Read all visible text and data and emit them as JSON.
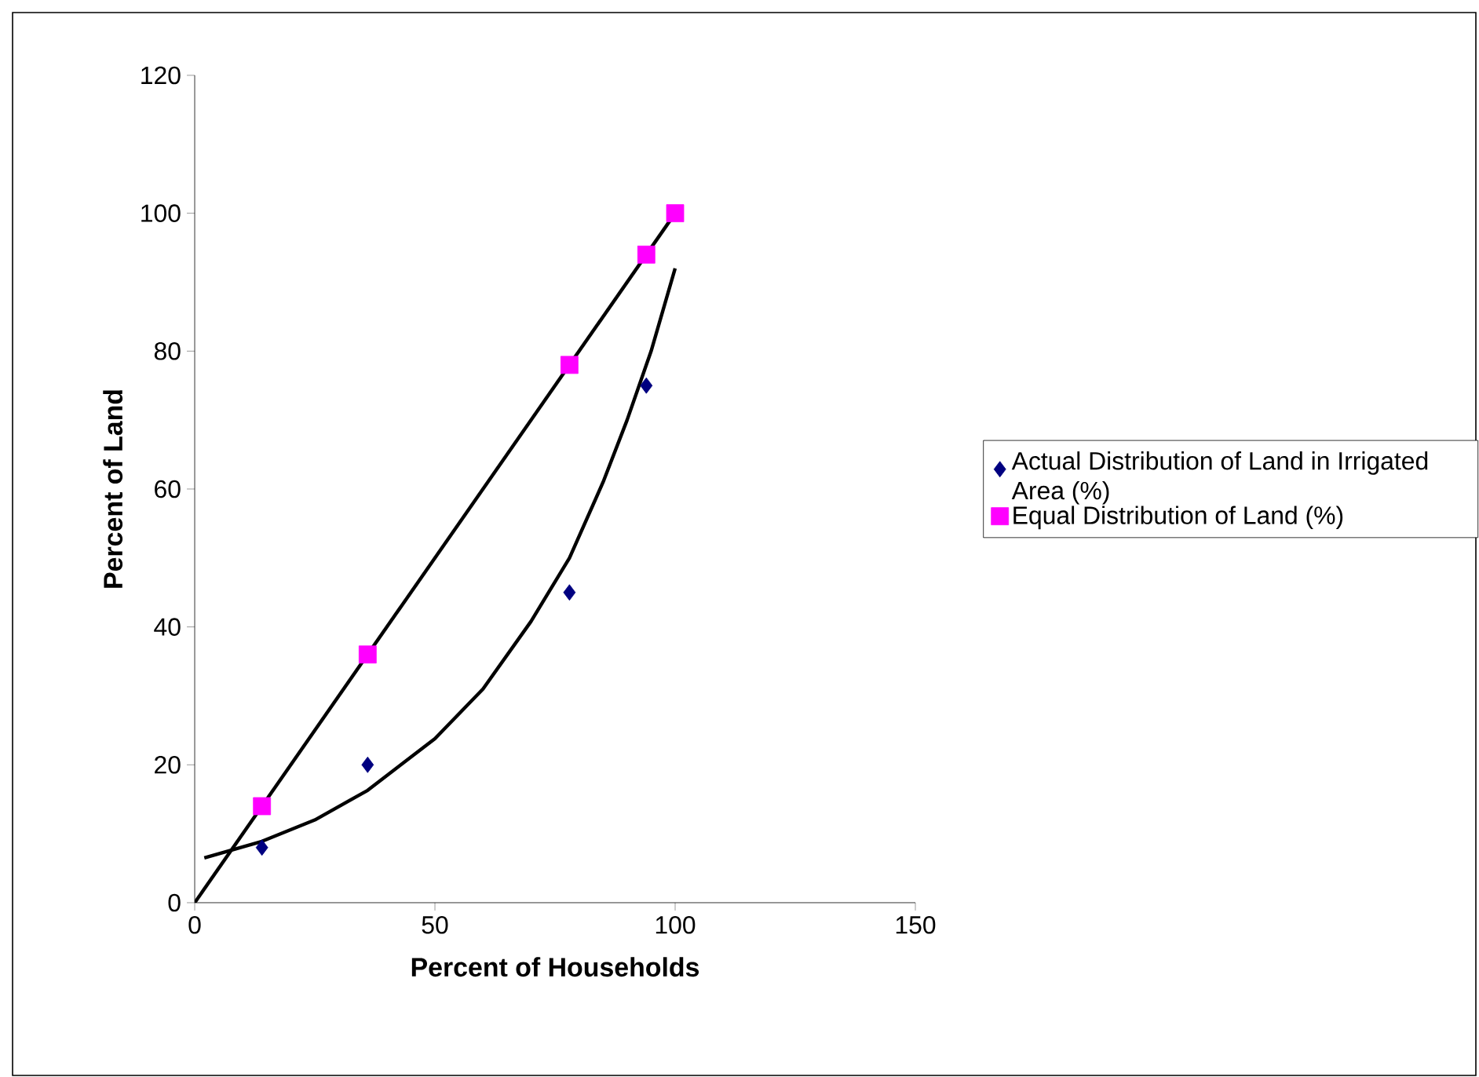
{
  "chart_data": {
    "type": "scatter",
    "xlabel": "Percent of Households",
    "ylabel": "Percent of Land",
    "xlim": [
      0,
      150
    ],
    "ylim": [
      0,
      120
    ],
    "xticks": [
      0,
      50,
      100,
      150
    ],
    "yticks": [
      0,
      20,
      40,
      60,
      80,
      100,
      120
    ],
    "grid": false,
    "legend": "right",
    "series": [
      {
        "name": "Actual Distribution of Land in Irrigated Area (%)",
        "marker": "diamond",
        "color": "#000080",
        "x": [
          14,
          36,
          78,
          94
        ],
        "values": [
          8,
          20,
          45,
          75
        ]
      },
      {
        "name": "Equal Distribution of Land (%)",
        "marker": "square",
        "color": "#ff00ff",
        "x": [
          14,
          36,
          78,
          94,
          100
        ],
        "values": [
          14,
          36,
          78,
          94,
          100
        ]
      },
      {
        "type": "line",
        "marker": "none",
        "color": "#000000",
        "x": [
          2,
          14,
          25,
          36,
          50,
          60,
          70,
          78,
          85,
          90,
          95,
          100
        ],
        "values": [
          6.5,
          8.9,
          12,
          16.3,
          23.8,
          31,
          40.8,
          50,
          61,
          70,
          80,
          92
        ]
      },
      {
        "type": "line",
        "marker": "none",
        "color": "#000000",
        "x": [
          0,
          100
        ],
        "values": [
          0,
          100
        ]
      }
    ]
  }
}
